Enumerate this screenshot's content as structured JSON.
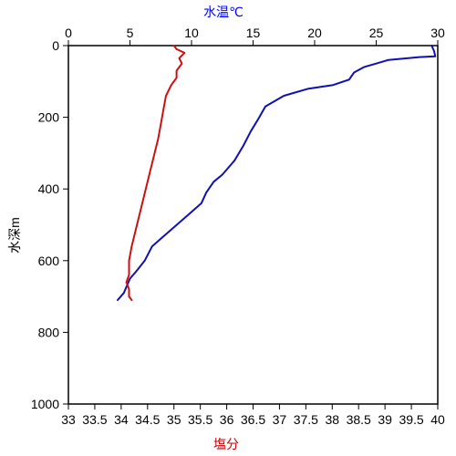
{
  "chart_data": {
    "type": "line",
    "y_axis": {
      "label": "水深m",
      "range": [
        0,
        1000
      ],
      "ticks": [
        0,
        200,
        400,
        600,
        800,
        1000
      ],
      "inverted": true
    },
    "top_axis": {
      "label": "水温℃",
      "label_color": "#0000ff",
      "range": [
        0,
        30
      ],
      "ticks": [
        0,
        5,
        10,
        15,
        20,
        25,
        30
      ]
    },
    "bottom_axis": {
      "label": "塩分",
      "label_color": "#cc0000",
      "range": [
        33,
        40
      ],
      "ticks": [
        33,
        33.5,
        34,
        34.5,
        35,
        35.5,
        36,
        36.5,
        37,
        37.5,
        38,
        38.5,
        39,
        39.5,
        40
      ]
    },
    "series": [
      {
        "axis": "top",
        "color": "#1010b0",
        "points": [
          [
            29.5,
            0
          ],
          [
            29.7,
            15
          ],
          [
            29.8,
            30
          ],
          [
            28.5,
            32
          ],
          [
            26.0,
            40
          ],
          [
            25.0,
            50
          ],
          [
            24.0,
            60
          ],
          [
            23.2,
            75
          ],
          [
            22.8,
            95
          ],
          [
            21.5,
            110
          ],
          [
            19.5,
            120
          ],
          [
            17.5,
            140
          ],
          [
            16.0,
            170
          ],
          [
            15.5,
            200
          ],
          [
            14.8,
            240
          ],
          [
            14.2,
            280
          ],
          [
            13.5,
            320
          ],
          [
            12.5,
            360
          ],
          [
            11.8,
            380
          ],
          [
            11.2,
            410
          ],
          [
            10.8,
            440
          ],
          [
            9.8,
            470
          ],
          [
            8.8,
            500
          ],
          [
            7.8,
            530
          ],
          [
            6.8,
            560
          ],
          [
            6.2,
            600
          ],
          [
            5.5,
            630
          ],
          [
            5.0,
            650
          ],
          [
            4.5,
            690
          ],
          [
            4.0,
            710
          ]
        ]
      },
      {
        "axis": "bottom",
        "color": "#cc1010",
        "points": [
          [
            35.0,
            0
          ],
          [
            35.05,
            10
          ],
          [
            35.2,
            20
          ],
          [
            35.1,
            35
          ],
          [
            35.15,
            50
          ],
          [
            35.05,
            70
          ],
          [
            35.05,
            90
          ],
          [
            34.95,
            110
          ],
          [
            34.85,
            140
          ],
          [
            34.8,
            180
          ],
          [
            34.75,
            220
          ],
          [
            34.7,
            260
          ],
          [
            34.6,
            320
          ],
          [
            34.5,
            380
          ],
          [
            34.4,
            440
          ],
          [
            34.3,
            500
          ],
          [
            34.2,
            560
          ],
          [
            34.15,
            600
          ],
          [
            34.15,
            640
          ],
          [
            34.1,
            660
          ],
          [
            34.15,
            680
          ],
          [
            34.15,
            700
          ],
          [
            34.2,
            710
          ]
        ]
      }
    ]
  }
}
